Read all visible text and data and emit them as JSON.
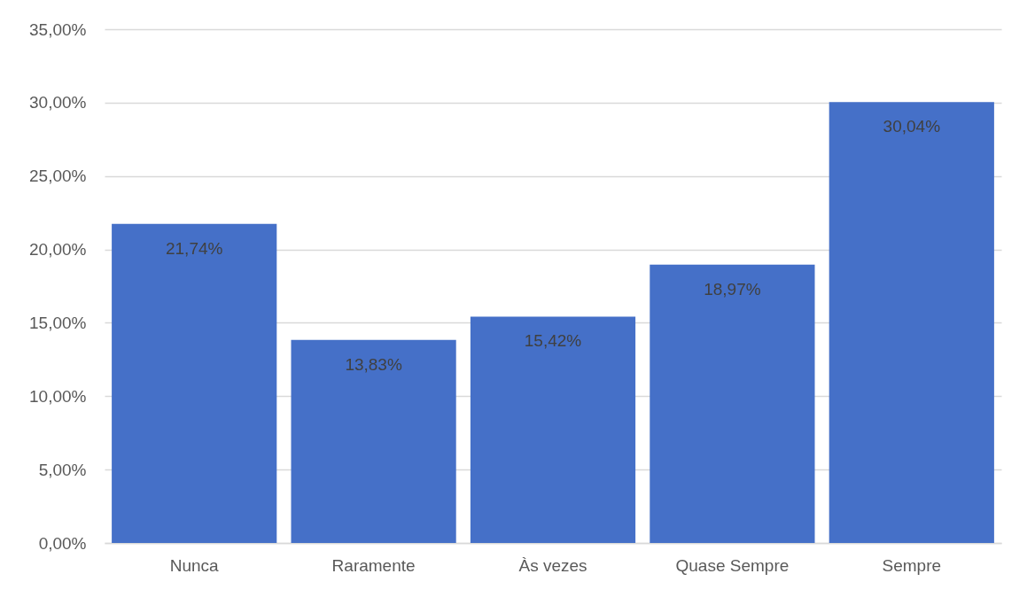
{
  "chart_data": {
    "type": "bar",
    "categories": [
      "Nunca",
      "Raramente",
      "Às vezes",
      "Quase Sempre",
      "Sempre"
    ],
    "values": [
      21.74,
      13.83,
      15.42,
      18.97,
      30.04
    ],
    "value_labels": [
      "21,74%",
      "13,83%",
      "15,42%",
      "18,97%",
      "30,04%"
    ],
    "color": "#4570c8",
    "ylim": [
      0,
      35
    ],
    "yticks": [
      {
        "value": 0,
        "label": "0,00%"
      },
      {
        "value": 5,
        "label": "5,00%"
      },
      {
        "value": 10,
        "label": "10,00%"
      },
      {
        "value": 15,
        "label": "15,00%"
      },
      {
        "value": 20,
        "label": "20,00%"
      },
      {
        "value": 25,
        "label": "25,00%"
      },
      {
        "value": 30,
        "label": "30,00%"
      },
      {
        "value": 35,
        "label": "35,00%"
      }
    ],
    "grid": "y"
  }
}
